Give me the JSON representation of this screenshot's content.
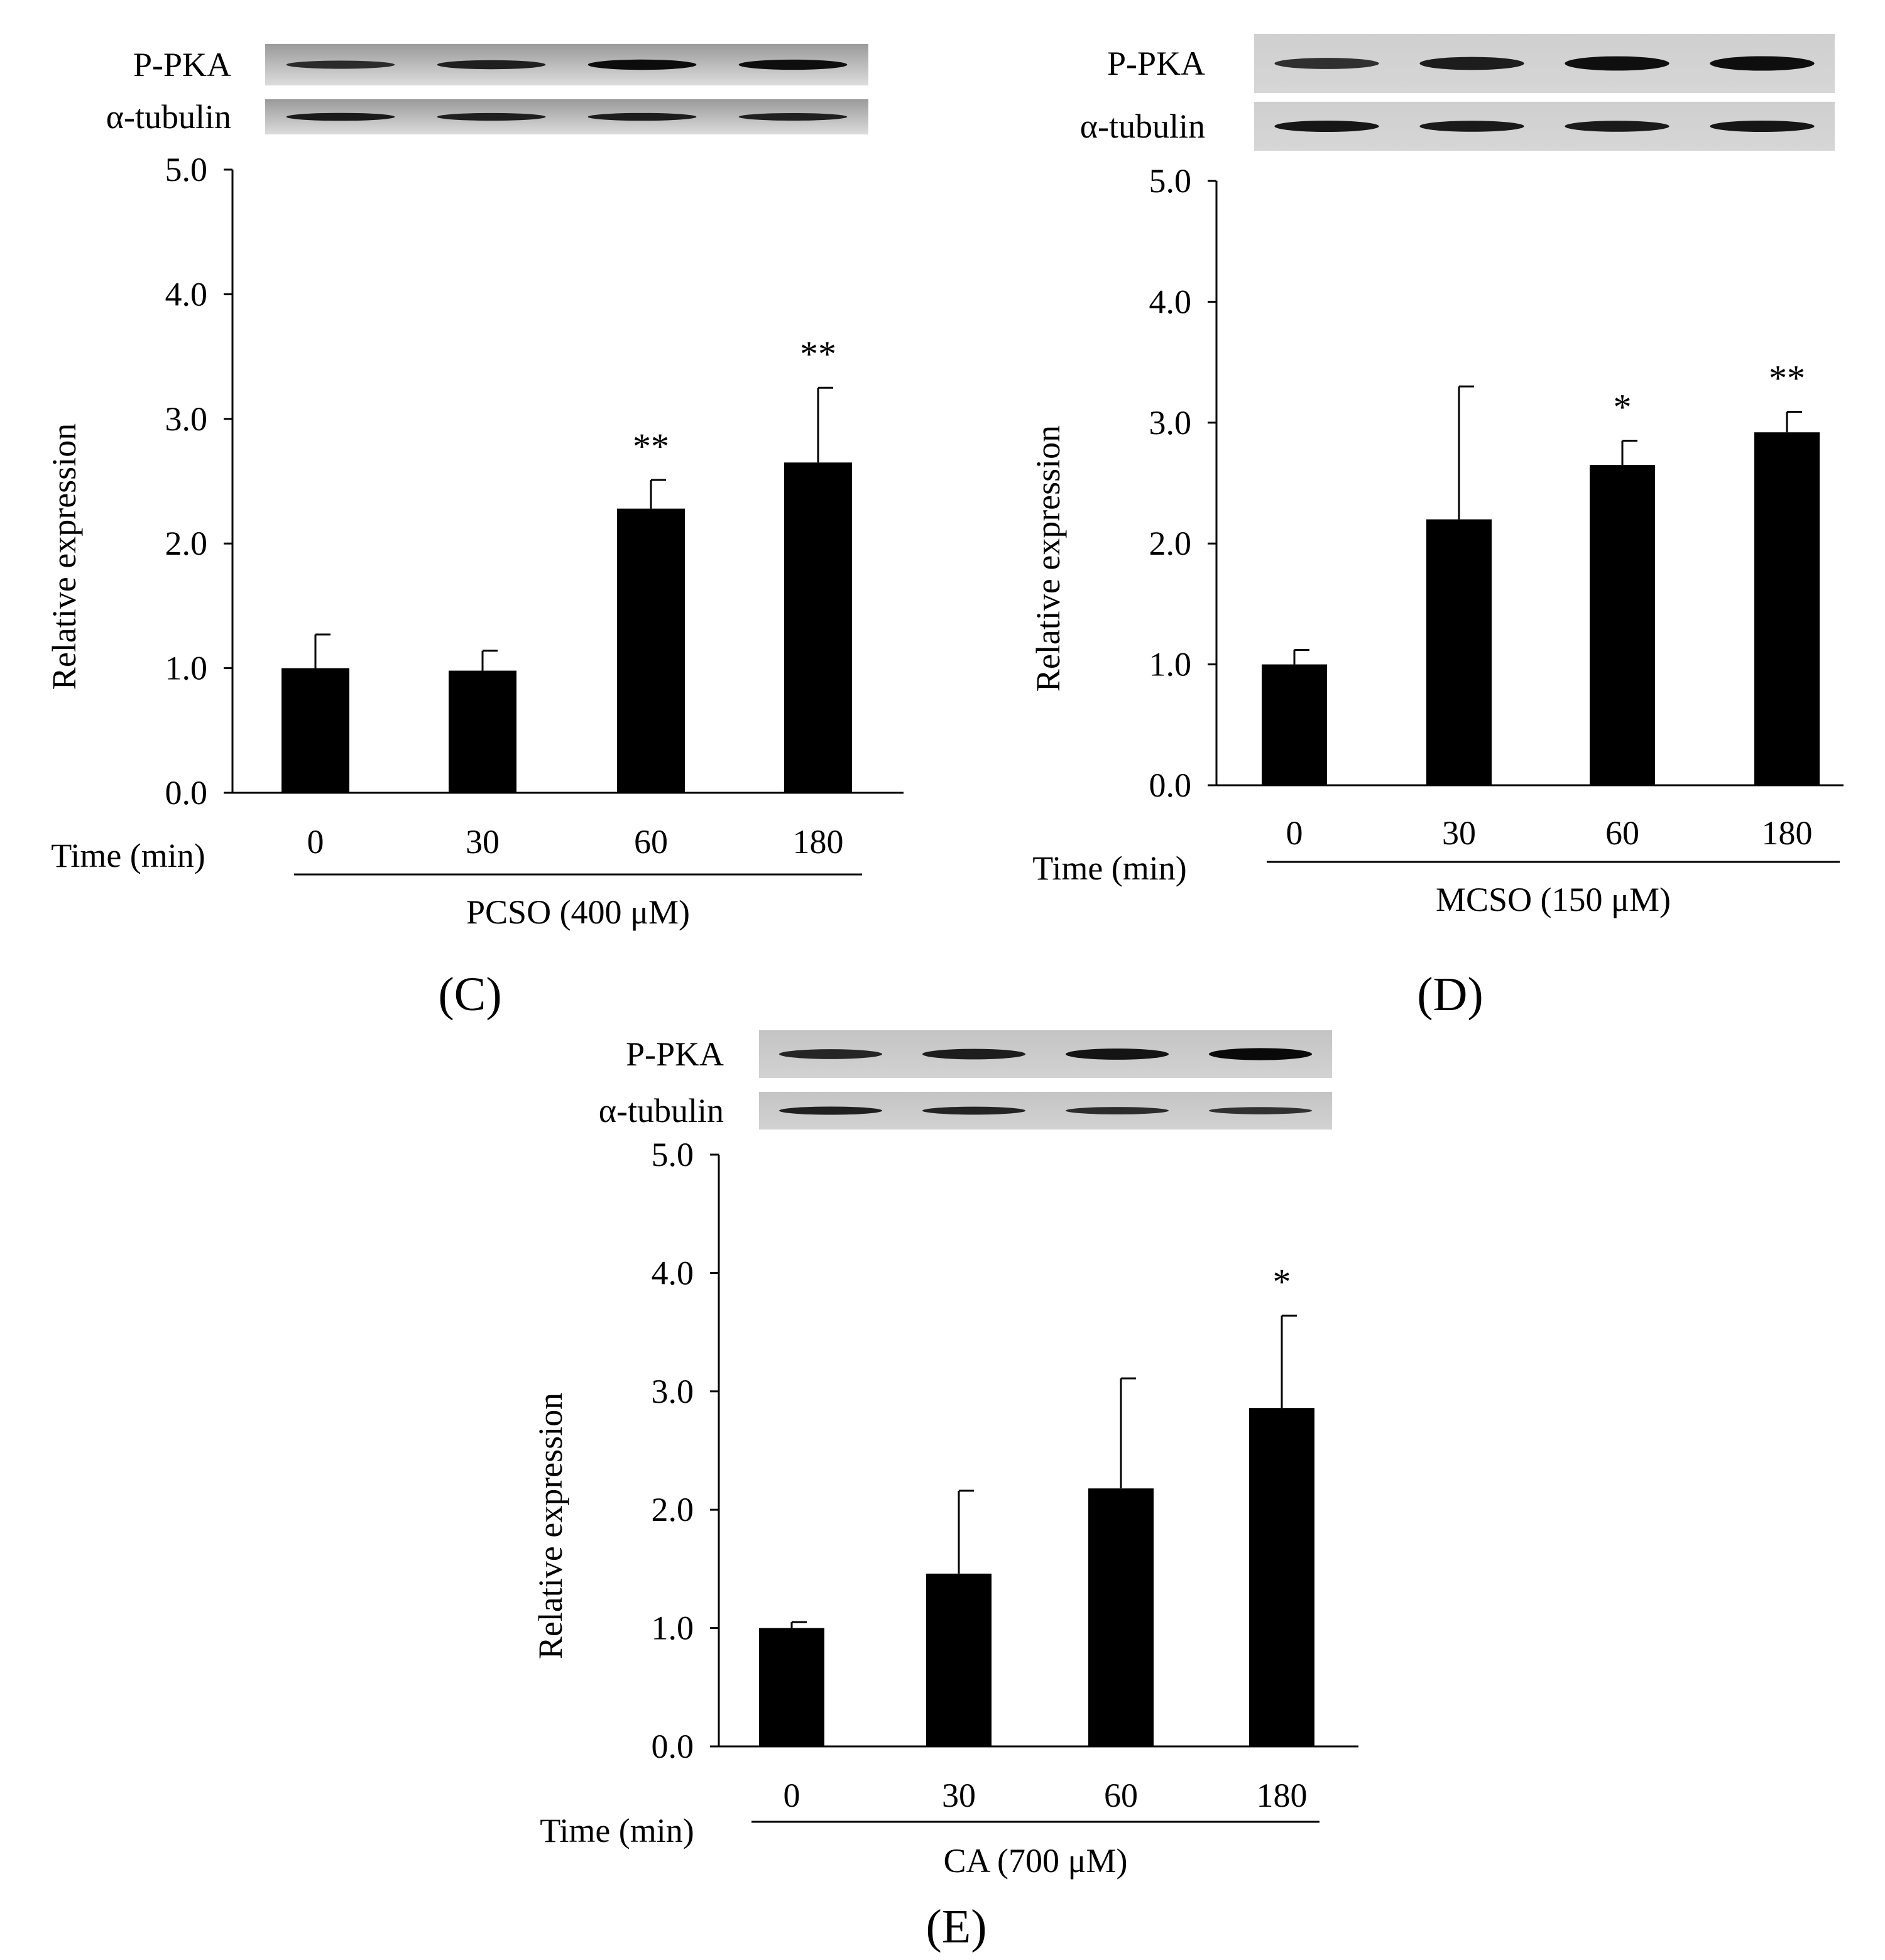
{
  "figure": {
    "panel_labels": [
      "(C)",
      "(D)",
      "(E)"
    ]
  },
  "chart_data": [
    {
      "type": "bar",
      "panel": "C",
      "blot_labels": [
        "P-PKA",
        "α-tubulin"
      ],
      "xlabel": "Time (min)",
      "treatment": "PCSO (400 μM)",
      "ylabel": "Relative expression",
      "categories": [
        "0",
        "30",
        "60",
        "180"
      ],
      "values": [
        1.0,
        0.98,
        2.28,
        2.65
      ],
      "errors": [
        0.27,
        0.16,
        0.23,
        0.6
      ],
      "significance": [
        "",
        "",
        "**",
        "**"
      ],
      "ylim": [
        0,
        5
      ],
      "yticks": [
        "0.0",
        "1.0",
        "2.0",
        "3.0",
        "4.0",
        "5.0"
      ],
      "band_intensity": {
        "P-PKA": [
          0.55,
          0.7,
          0.92,
          0.9
        ],
        "α-tubulin": [
          0.75,
          0.7,
          0.72,
          0.68
        ]
      },
      "colors": {
        "bar": "#000000",
        "blot_bg_top": "#9a9a9a",
        "blot_bg_bottom": "#dcdcdc"
      }
    },
    {
      "type": "bar",
      "panel": "D",
      "blot_labels": [
        "P-PKA",
        "α-tubulin"
      ],
      "xlabel": "Time (min)",
      "treatment": "MCSO (150 μM)",
      "ylabel": "Relative expression",
      "categories": [
        "0",
        "30",
        "60",
        "180"
      ],
      "values": [
        1.0,
        2.2,
        2.65,
        2.92
      ],
      "errors": [
        0.12,
        1.1,
        0.2,
        0.17
      ],
      "significance": [
        "",
        "",
        "*",
        "**"
      ],
      "ylim": [
        0,
        5
      ],
      "yticks": [
        "0.0",
        "1.0",
        "2.0",
        "3.0",
        "4.0",
        "5.0"
      ],
      "band_intensity": {
        "P-PKA": [
          0.5,
          0.72,
          0.88,
          0.9
        ],
        "α-tubulin": [
          0.8,
          0.75,
          0.75,
          0.8
        ]
      },
      "colors": {
        "bar": "#000000",
        "blot_bg_top": "#cfcfcf",
        "blot_bg_bottom": "#d6d6d6"
      }
    },
    {
      "type": "bar",
      "panel": "E",
      "blot_labels": [
        "P-PKA",
        "α-tubulin"
      ],
      "xlabel": "Time (min)",
      "treatment": "CA (700 μM)",
      "ylabel": "Relative expression",
      "categories": [
        "0",
        "30",
        "60",
        "180"
      ],
      "values": [
        1.0,
        1.46,
        2.18,
        2.86
      ],
      "errors": [
        0.05,
        0.7,
        0.93,
        0.78
      ],
      "significance": [
        "",
        "",
        "",
        "*"
      ],
      "ylim": [
        0,
        5
      ],
      "yticks": [
        "0.0",
        "1.0",
        "2.0",
        "3.0",
        "4.0",
        "5.0"
      ],
      "band_intensity": {
        "P-PKA": [
          0.62,
          0.72,
          0.82,
          0.95
        ],
        "α-tubulin": [
          0.7,
          0.65,
          0.55,
          0.5
        ]
      },
      "colors": {
        "bar": "#000000",
        "blot_bg_top": "#c4c4c4",
        "blot_bg_bottom": "#d2d2d2"
      }
    }
  ]
}
